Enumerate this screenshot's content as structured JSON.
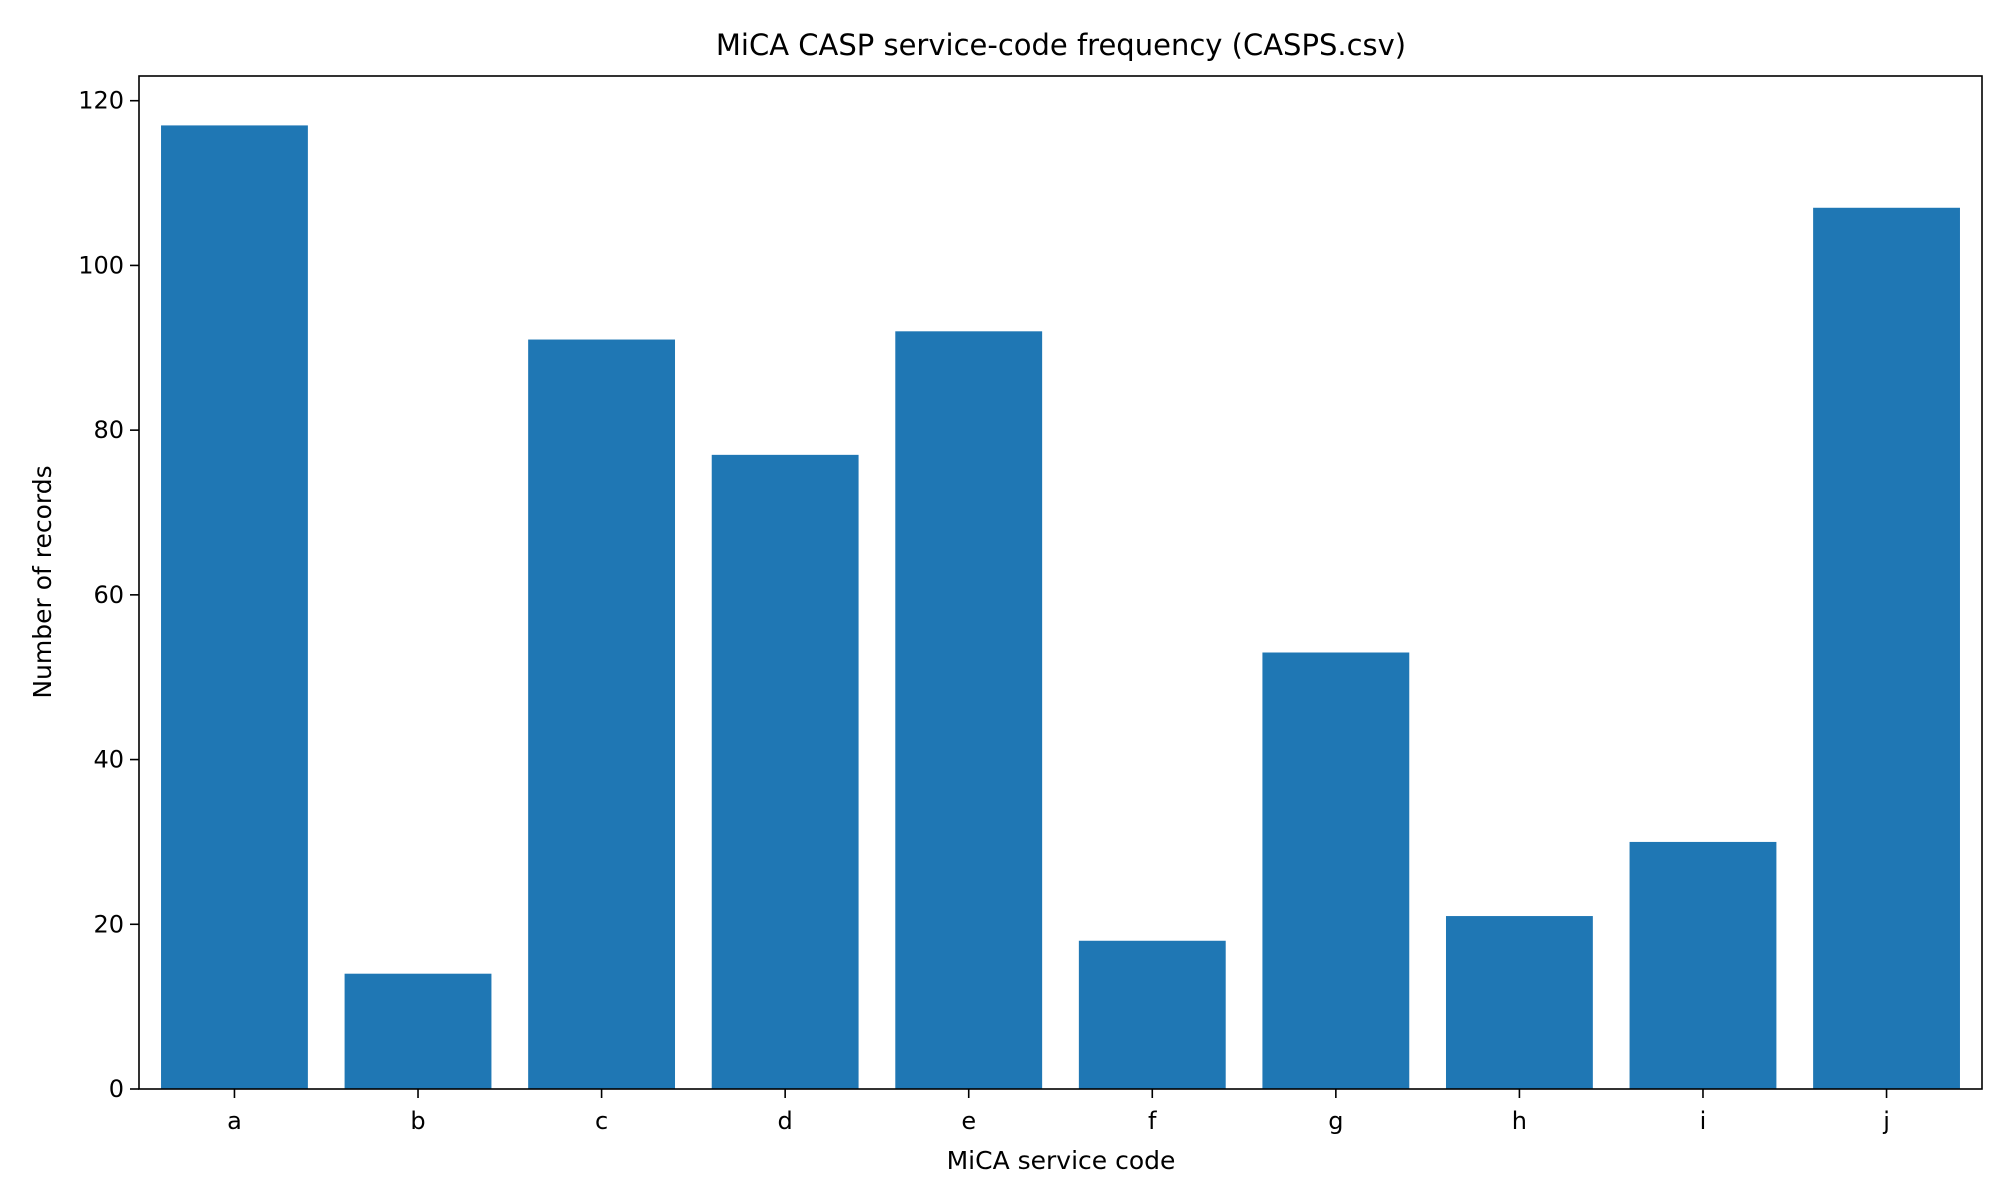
{
  "chart_data": {
    "type": "bar",
    "title": "MiCA CASP service-code frequency (CASPS.csv)",
    "xlabel": "MiCA service code",
    "ylabel": "Number of records",
    "categories": [
      "a",
      "b",
      "c",
      "d",
      "e",
      "f",
      "g",
      "h",
      "i",
      "j"
    ],
    "values": [
      117,
      14,
      91,
      77,
      92,
      18,
      53,
      21,
      30,
      107
    ],
    "ylim": [
      0,
      123
    ],
    "yticks": [
      0,
      20,
      40,
      60,
      80,
      100,
      120
    ],
    "grid": false,
    "bar_color": "#1f77b4"
  }
}
